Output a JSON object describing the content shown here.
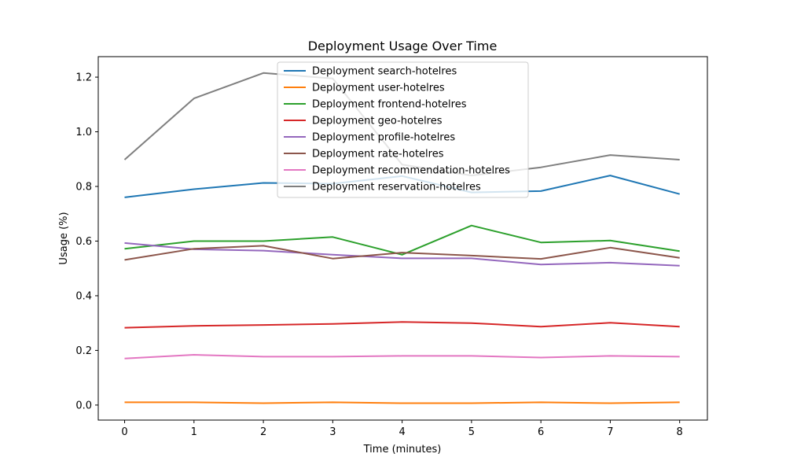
{
  "chart_data": {
    "type": "line",
    "title": "Deployment Usage Over Time",
    "xlabel": "Time (minutes)",
    "ylabel": "Usage (%)",
    "x": [
      0,
      1,
      2,
      3,
      4,
      5,
      6,
      7,
      8
    ],
    "xticks": [
      "0",
      "1",
      "2",
      "3",
      "4",
      "5",
      "6",
      "7",
      "8"
    ],
    "yticks": [
      "0.0",
      "0.2",
      "0.4",
      "0.6",
      "0.8",
      "1.0",
      "1.2"
    ],
    "xlim": [
      -0.38,
      8.4
    ],
    "ylim": [
      -0.055,
      1.275
    ],
    "grid": false,
    "legend_position": "upper-center",
    "series": [
      {
        "name": "Deployment search-hotelres",
        "color": "#1f77b4",
        "values": [
          0.76,
          0.79,
          0.813,
          0.81,
          0.838,
          0.778,
          0.783,
          0.84,
          0.772
        ]
      },
      {
        "name": "Deployment user-hotelres",
        "color": "#ff7f0e",
        "values": [
          0.01,
          0.01,
          0.007,
          0.01,
          0.007,
          0.007,
          0.01,
          0.007,
          0.01
        ]
      },
      {
        "name": "Deployment frontend-hotelres",
        "color": "#2ca02c",
        "values": [
          0.572,
          0.6,
          0.6,
          0.615,
          0.55,
          0.657,
          0.595,
          0.602,
          0.563
        ]
      },
      {
        "name": "Deployment geo-hotelres",
        "color": "#d62728",
        "values": [
          0.283,
          0.29,
          0.293,
          0.297,
          0.304,
          0.3,
          0.287,
          0.301,
          0.287
        ]
      },
      {
        "name": "Deployment profile-hotelres",
        "color": "#9467bd",
        "values": [
          0.593,
          0.57,
          0.565,
          0.55,
          0.537,
          0.537,
          0.514,
          0.521,
          0.51
        ]
      },
      {
        "name": "Deployment rate-hotelres",
        "color": "#8c564b",
        "values": [
          0.531,
          0.572,
          0.583,
          0.536,
          0.558,
          0.547,
          0.535,
          0.576,
          0.539
        ]
      },
      {
        "name": "Deployment recommendation-hotelres",
        "color": "#e377c2",
        "values": [
          0.17,
          0.184,
          0.177,
          0.177,
          0.18,
          0.18,
          0.174,
          0.18,
          0.177
        ]
      },
      {
        "name": "Deployment reservation-hotelres",
        "color": "#7f7f7f",
        "values": [
          0.898,
          1.122,
          1.215,
          1.195,
          0.88,
          0.84,
          0.87,
          0.915,
          0.898
        ]
      }
    ]
  }
}
